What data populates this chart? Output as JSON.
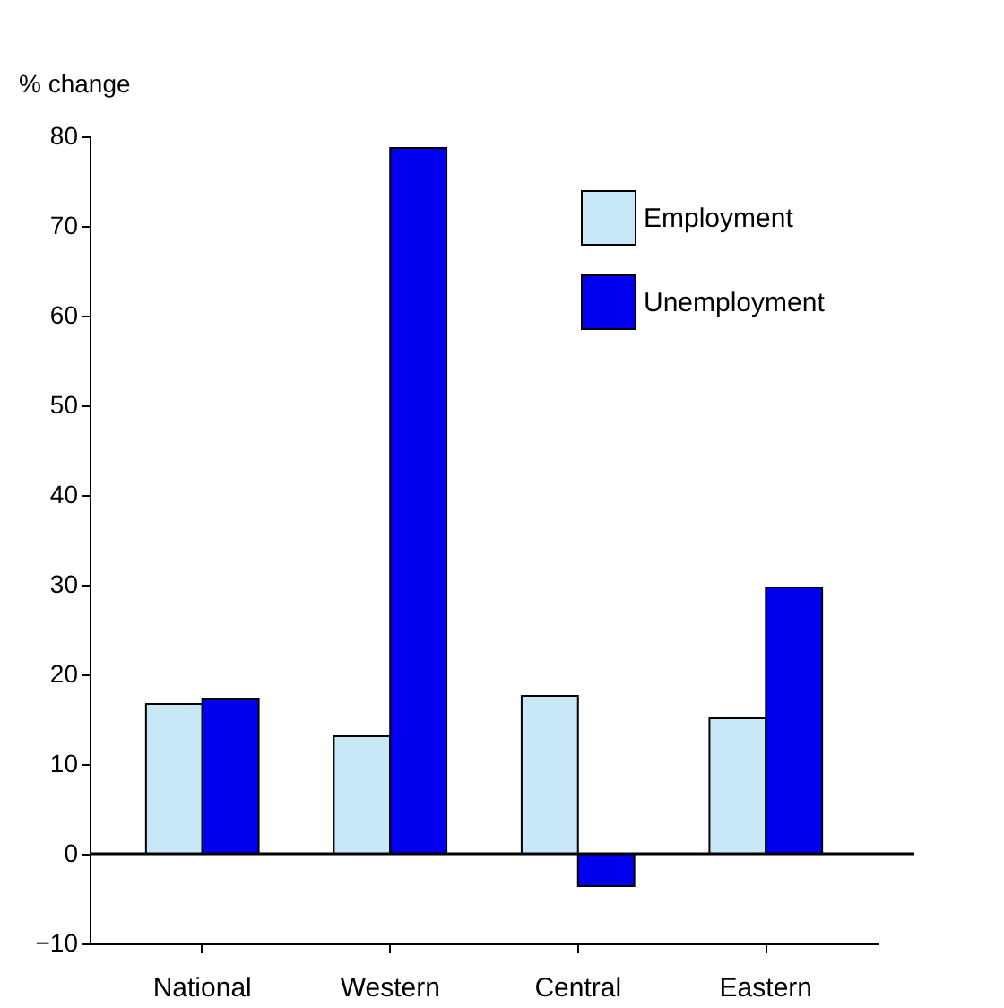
{
  "chart_data": {
    "type": "bar",
    "ylabel": "% change",
    "categories": [
      "National",
      "Western",
      "Central",
      "Eastern"
    ],
    "series": [
      {
        "name": "Employment",
        "color": "#c8e8f8",
        "values": [
          16.7,
          13.1,
          17.6,
          15.1
        ]
      },
      {
        "name": "Unemployment",
        "color": "#0000ee",
        "values": [
          17.3,
          78.7,
          -3.6,
          29.7
        ]
      }
    ],
    "ylim": [
      -10,
      80
    ],
    "yticks": [
      -10,
      0,
      10,
      20,
      30,
      40,
      50,
      60,
      70,
      80
    ],
    "grid": false,
    "legend": "top right",
    "ref_lines": [
      {
        "axis": "y",
        "value": 0
      }
    ]
  }
}
